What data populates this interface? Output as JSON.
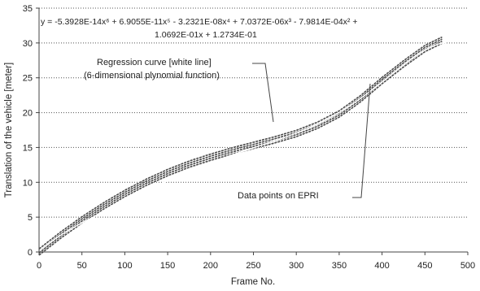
{
  "chart_data": {
    "type": "line",
    "xlabel": "Frame No.",
    "ylabel": "Translation of the vehicle [meter]",
    "xlim": [
      0,
      500
    ],
    "ylim": [
      0,
      35
    ],
    "x_ticks": [
      "0",
      "50",
      "100",
      "150",
      "200",
      "250",
      "300",
      "350",
      "400",
      "450",
      "500"
    ],
    "y_ticks": [
      "0",
      "5",
      "10",
      "15",
      "20",
      "25",
      "30",
      "35"
    ],
    "grid": "horizontal",
    "equation": {
      "line1": "y = -5.3928E-14x⁶ + 6.9055E-11x⁵ - 3.2321E-08x⁴ + 7.0372E-06x³ - 7.9814E-04x² +",
      "line2": "1.0692E-01x + 1.2734E-01"
    },
    "annotations": {
      "regression_line1": "Regression curve [white line]",
      "regression_line2": "(6-dimensional plynomial function)",
      "data_points": "Data points on EPRI"
    },
    "series": [
      {
        "type": "scatter-band",
        "x": [
          0,
          25,
          50,
          75,
          100,
          125,
          150,
          175,
          200,
          225,
          250,
          275,
          300,
          325,
          350,
          375,
          400,
          425,
          450,
          470
        ],
        "y": [
          0.0,
          2.4,
          4.6,
          6.6,
          8.4,
          10.0,
          11.4,
          12.6,
          13.6,
          14.5,
          15.3,
          16.1,
          17.0,
          18.2,
          19.8,
          22.0,
          24.6,
          27.0,
          29.2,
          30.4
        ]
      },
      {
        "type": "line",
        "coefficients": [
          0.12734,
          0.10692,
          -0.00079814,
          7.0372e-06,
          -3.2321e-08,
          6.9055e-11,
          -5.3928e-14
        ],
        "x_range": [
          0,
          475
        ]
      }
    ]
  }
}
